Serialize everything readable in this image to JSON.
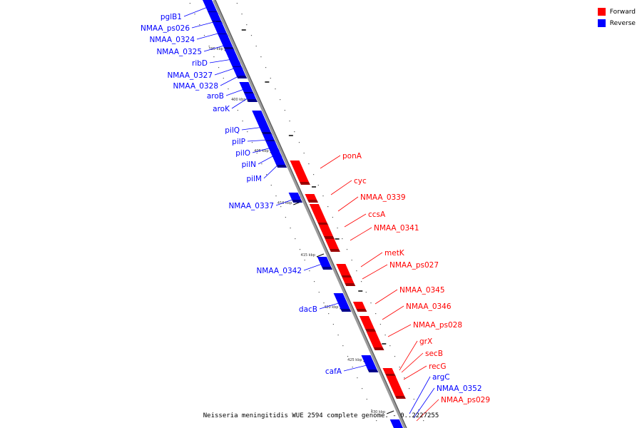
{
  "legend": {
    "forward": {
      "label": "Forward",
      "color": "#ff0000"
    },
    "reverse": {
      "label": "Reverse",
      "color": "#0000ff"
    }
  },
  "caption": "Neisseria meningitidis WUE 2594 complete genome. - 0..2227255",
  "map": {
    "tick_labels": [
      "395 kbp",
      "400 kbp",
      "405 kbp",
      "410 kbp",
      "415 kbp",
      "420 kbp",
      "425 kbp",
      "430 kbp"
    ],
    "genes": [
      {
        "label": "pglB1",
        "strand": "reverse"
      },
      {
        "label": "NMAA_ps026",
        "strand": "reverse"
      },
      {
        "label": "NMAA_0324",
        "strand": "reverse"
      },
      {
        "label": "NMAA_0325",
        "strand": "reverse"
      },
      {
        "label": "ribD",
        "strand": "reverse"
      },
      {
        "label": "NMAA_0327",
        "strand": "reverse"
      },
      {
        "label": "NMAA_0328",
        "strand": "reverse"
      },
      {
        "label": "aroB",
        "strand": "reverse"
      },
      {
        "label": "aroK",
        "strand": "reverse"
      },
      {
        "label": "pilQ",
        "strand": "reverse"
      },
      {
        "label": "pilP",
        "strand": "reverse"
      },
      {
        "label": "pilO",
        "strand": "reverse"
      },
      {
        "label": "pilN",
        "strand": "reverse"
      },
      {
        "label": "pilM",
        "strand": "reverse"
      },
      {
        "label": "NMAA_0337",
        "strand": "reverse"
      },
      {
        "label": "NMAA_0342",
        "strand": "reverse"
      },
      {
        "label": "dacB",
        "strand": "reverse"
      },
      {
        "label": "cafA",
        "strand": "reverse"
      },
      {
        "label": "ponA",
        "strand": "forward"
      },
      {
        "label": "cyc",
        "strand": "forward"
      },
      {
        "label": "NMAA_0339",
        "strand": "forward"
      },
      {
        "label": "ccsA",
        "strand": "forward"
      },
      {
        "label": "NMAA_0341",
        "strand": "forward"
      },
      {
        "label": "metK",
        "strand": "forward"
      },
      {
        "label": "NMAA_ps027",
        "strand": "forward"
      },
      {
        "label": "NMAA_0345",
        "strand": "forward"
      },
      {
        "label": "NMAA_0346",
        "strand": "forward"
      },
      {
        "label": "NMAA_ps028",
        "strand": "forward"
      },
      {
        "label": "grX",
        "strand": "forward"
      },
      {
        "label": "secB",
        "strand": "forward"
      },
      {
        "label": "recG",
        "strand": "forward"
      },
      {
        "label": "argC",
        "strand": "reverse"
      },
      {
        "label": "NMAA_0352",
        "strand": "reverse"
      },
      {
        "label": "NMAA_ps029",
        "strand": "forward"
      }
    ]
  }
}
